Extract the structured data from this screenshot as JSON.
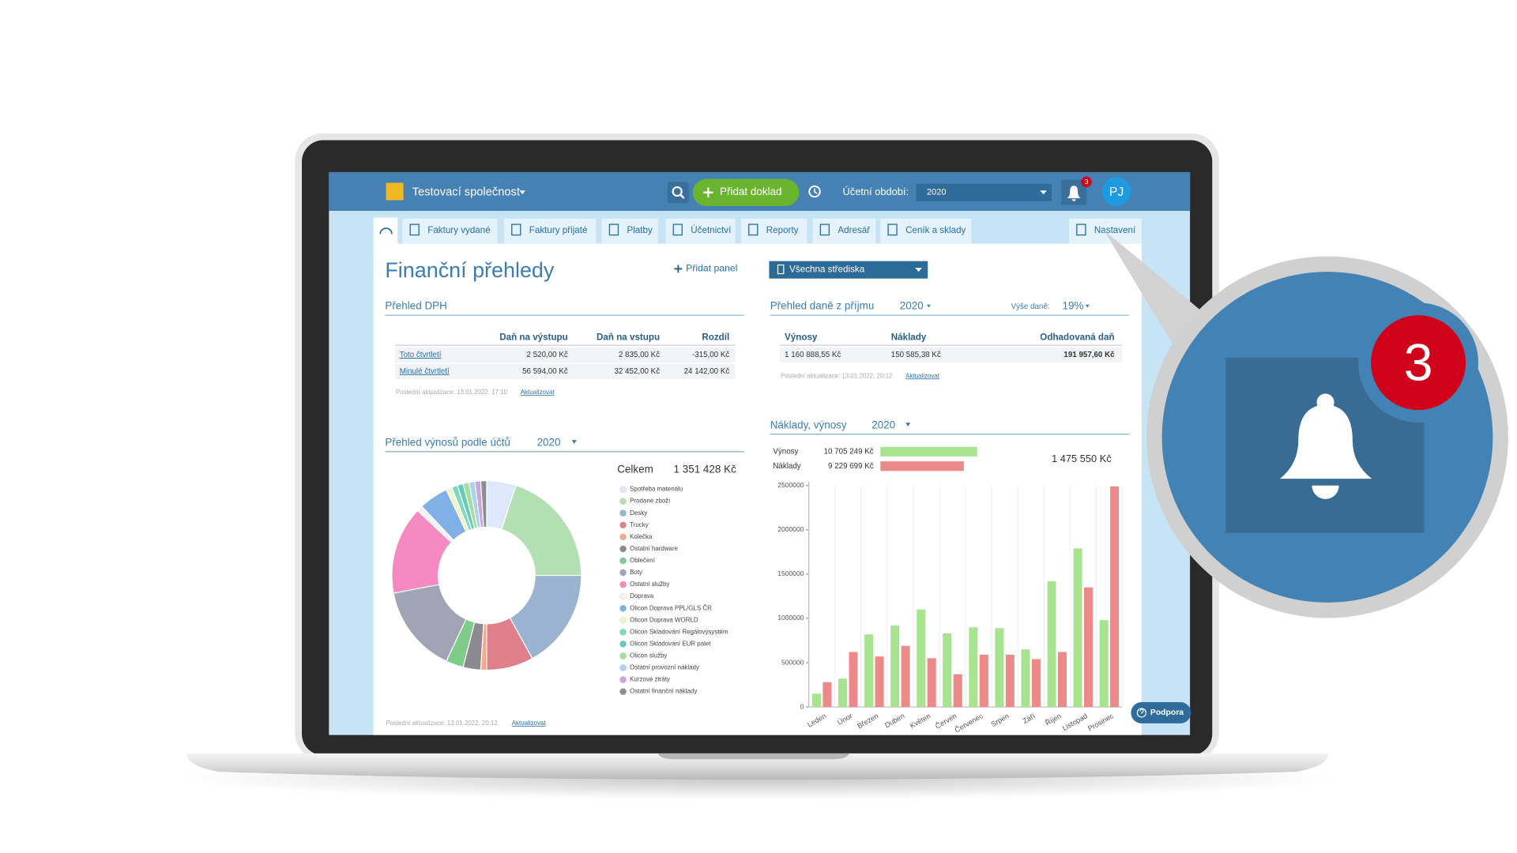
{
  "app": {
    "company": "Testovací společnost",
    "add_button": "Přidat doklad",
    "period_label": "Účetní období:",
    "period": "2020",
    "notifications": "3",
    "avatar": "PJ"
  },
  "tabs": [
    "Faktury vydané",
    "Faktury přijaté",
    "Platby",
    "Účetnictví",
    "Reporty",
    "Adresář",
    "Ceník a sklady",
    "Nastavení"
  ],
  "page_title": "Finanční přehledy",
  "add_panel": "Přidat panel",
  "centers": "Všechna střediska",
  "vat": {
    "title": "Přehled DPH",
    "columns": [
      "Daň na výstupu",
      "Daň na vstupu",
      "Rozdíl"
    ],
    "rows": [
      [
        "Toto čtvrtletí",
        "2 520,00 Kč",
        "2 835,00 Kč",
        "-315,00 Kč"
      ],
      [
        "Minulé čtvrtletí",
        "56 594,00 Kč",
        "32 452,00 Kč",
        "24 142,00 Kč"
      ]
    ],
    "updated": "Poslední aktualizace: 13.01.2022, 17:10",
    "refresh": "Aktualizovat"
  },
  "income_tax": {
    "title": "Přehled daně z příjmu",
    "year": "2020",
    "rate_label": "Výše daně:",
    "rate": "19%",
    "columns": [
      "Výnosy",
      "Náklady",
      "Odhadovaná daň"
    ],
    "rows": [
      [
        "1 160 888,55 Kč",
        "150 585,38 Kč",
        "191 957,60 Kč"
      ]
    ],
    "updated": "Poslední aktualizace: 13.01.2022, 20:12",
    "refresh": "Aktualizovat"
  },
  "chart_data": [
    {
      "type": "pie",
      "title": "Přehled výnosů podle účtů",
      "year": "2020",
      "total_label": "Celkem",
      "total": "1 351 428 Kč",
      "categories": [
        "Spotřeba materiálu",
        "Prodané zboží",
        "Desky",
        "Trucky",
        "Kolečka",
        "Ostatní hardware",
        "Oblečení",
        "Boty",
        "Ostatní služby",
        "Doprava",
        "Olicon Doprava PPL/GLS ČR",
        "Olicon Doprava WORLD",
        "Olicon Skladování Regálovýsystém",
        "Olicon Skladování EUR palet",
        "Olicon služby",
        "Ostatní provozní náklady",
        "Kurzové ztráty",
        "Ostatní finanční náklady"
      ],
      "values": [
        5,
        20,
        17,
        8,
        1,
        3,
        3,
        15,
        15,
        1,
        5,
        1,
        1,
        1,
        1,
        1,
        1,
        1
      ],
      "colors": [
        "#dde8fa",
        "#b3e0b3",
        "#9ab3d0",
        "#e0808a",
        "#f5aa8a",
        "#8a8a90",
        "#7fcc8a",
        "#a0a4b4",
        "#f58ac0",
        "#f2f2f2",
        "#80b0e6",
        "#eef5c8",
        "#7fd8c4",
        "#66ccb5",
        "#a6dd9a",
        "#a6d3f0",
        "#c9a6dc",
        "#8c8c94"
      ],
      "updated": "Poslední aktualizace: 13.01.2022, 20:12",
      "refresh": "Aktualizovat"
    },
    {
      "type": "bar",
      "title": "Náklady, výnosy",
      "year": "2020",
      "totals": [
        10705249,
        9229699
      ],
      "total_labels": [
        "10 705 249 Kč",
        "9 229 699 Kč"
      ],
      "difference": "1 475 550 Kč",
      "categories": [
        "Leden",
        "Únor",
        "Březen",
        "Duben",
        "Květen",
        "Červen",
        "Červenec",
        "Srpen",
        "Září",
        "Říjen",
        "Listopad",
        "Prosinec"
      ],
      "series": [
        {
          "name": "Výnosy",
          "color": "#a8e48f",
          "values": [
            150000,
            320000,
            820000,
            920000,
            1100000,
            830000,
            900000,
            890000,
            650000,
            1420000,
            1790000,
            980000
          ]
        },
        {
          "name": "Náklady",
          "color": "#ec8a8a",
          "values": [
            280000,
            620000,
            570000,
            690000,
            550000,
            370000,
            590000,
            590000,
            540000,
            620000,
            1350000,
            2490000
          ]
        }
      ],
      "ylim": [
        0,
        2500000
      ],
      "yticks": [
        0,
        500000,
        1000000,
        1500000,
        2000000,
        2500000
      ]
    }
  ],
  "support": "Podpora",
  "zoom_badge": "3"
}
